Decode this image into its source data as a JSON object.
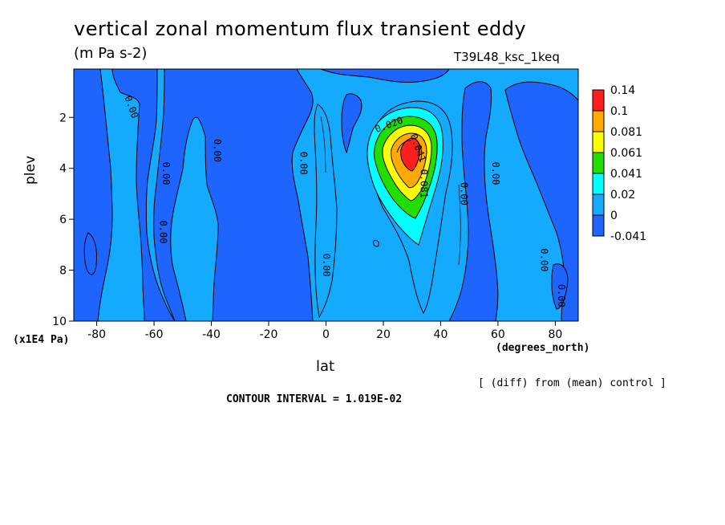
{
  "title": "vertical zonal momentum flux transient eddy",
  "units": "(m Pa s-2)",
  "run_label": "T39L48_ksc_1keq",
  "note": "[ (diff) from (mean) control ]",
  "contour_interval": "CONTOUR INTERVAL = 1.019E-02",
  "colors": {
    "dark_blue": "#1e64ff",
    "light_blue": "#14aaff",
    "cyan": "#00ffff",
    "green": "#22dd00",
    "yellow": "#ffff00",
    "orange": "#ffaa00",
    "red": "#ff1e1e"
  },
  "chart_data": {
    "type": "heatmap",
    "subtype": "filled-contour",
    "xlabel": "lat",
    "xunits": "(degrees_north)",
    "ylabel": "plev",
    "yunits": "(x1E4 Pa)",
    "xlim": [
      -88,
      88
    ],
    "ylim": [
      10,
      0.1
    ],
    "x_ticks": [
      "-80",
      "-60",
      "-40",
      "-20",
      "0",
      "20",
      "40",
      "60",
      "80"
    ],
    "x_tick_values": [
      -80,
      -60,
      -40,
      -20,
      0,
      20,
      40,
      60,
      80
    ],
    "y_ticks": [
      "2",
      "4",
      "6",
      "8",
      "10"
    ],
    "y_tick_values": [
      2,
      4,
      6,
      8,
      10
    ],
    "colorbar": {
      "labels": [
        "0.14",
        "0.1",
        "0.081",
        "0.061",
        "0.041",
        "0.02",
        "0",
        "-0.041"
      ],
      "colors": [
        "#ff1e1e",
        "#ffaa00",
        "#ffff00",
        "#22dd00",
        "#00ffff",
        "#14aaff",
        "#1e64ff"
      ]
    },
    "contour_labels": [
      {
        "text": "0.00",
        "lat": -68,
        "plev": 1.6,
        "angle": 70
      },
      {
        "text": "0.00",
        "lat": -56,
        "plev": 4.2,
        "angle": 90
      },
      {
        "text": "0.00",
        "lat": -38,
        "plev": 3.3,
        "angle": 90
      },
      {
        "text": "0.00",
        "lat": -57,
        "plev": 6.5,
        "angle": 90
      },
      {
        "text": "0.00",
        "lat": -8,
        "plev": 3.8,
        "angle": 90
      },
      {
        "text": "0.00",
        "lat": 0,
        "plev": 7.8,
        "angle": 90
      },
      {
        "text": "0.00",
        "lat": 48,
        "plev": 5.0,
        "angle": 90
      },
      {
        "text": "0.00",
        "lat": 59,
        "plev": 4.2,
        "angle": 90
      },
      {
        "text": "0.00",
        "lat": 76,
        "plev": 7.6,
        "angle": 90
      },
      {
        "text": "0.00",
        "lat": 82,
        "plev": 9.0,
        "angle": 90
      },
      {
        "text": "0.020",
        "lat": 22,
        "plev": 2.3,
        "angle": -20
      },
      {
        "text": "0.041",
        "lat": 32,
        "plev": 3.2,
        "angle": 70
      },
      {
        "text": "0.081",
        "lat": 34,
        "plev": 4.6,
        "angle": 90
      }
    ]
  }
}
